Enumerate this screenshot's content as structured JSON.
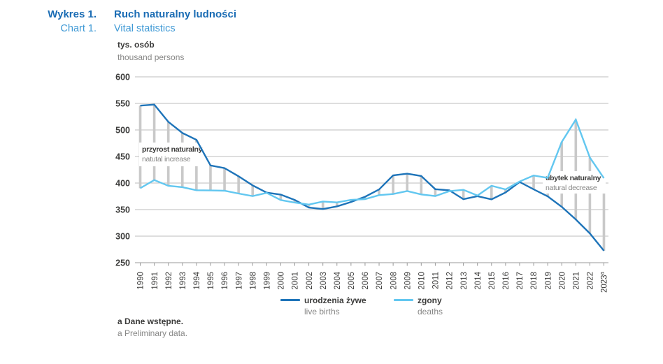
{
  "header": {
    "label_pl": "Wykres 1.",
    "title_pl": "Ruch naturalny ludności",
    "label_en": "Chart 1.",
    "title_en": "Vital statistics"
  },
  "axis": {
    "unit_pl": "tys. osób",
    "unit_en": "thousand persons"
  },
  "legend": [
    {
      "name_pl": "urodzenia żywe",
      "name_en": "live births",
      "color": "#1e74b9"
    },
    {
      "name_pl": "zgony",
      "name_en": "deaths",
      "color": "#62c7f0"
    }
  ],
  "footnote": {
    "pl": "a Dane wstępne.",
    "en": "a Preliminary data."
  },
  "colors": {
    "births_line": "#1e74b9",
    "deaths_line": "#62c7f0",
    "grid": "#bdbdbd",
    "axis": "#9a9a9a",
    "diff_bar": "#c9c9c9",
    "dark_text": "#3c3c3b",
    "gray_text": "#878786",
    "title_pl_blue": "#1a6cb4",
    "title_en_blue": "#3f99d5"
  },
  "chart_data": {
    "type": "line",
    "title": "Ruch naturalny ludności / Vital statistics",
    "xlabel": "",
    "ylabel": "tys. osób / thousand persons",
    "ylim": [
      250,
      600
    ],
    "yticks": [
      600,
      550,
      500,
      450,
      400,
      350,
      300,
      250
    ],
    "grid": true,
    "legend_position": "bottom",
    "categories": [
      "1990",
      "1991",
      "1992",
      "1993",
      "1994",
      "1995",
      "1996",
      "1997",
      "1998",
      "1999",
      "2000",
      "2001",
      "2002",
      "2003",
      "2004",
      "2005",
      "2006",
      "2007",
      "2008",
      "2009",
      "2010",
      "2011",
      "2012",
      "2013",
      "2014",
      "2015",
      "2016",
      "2017",
      "2018",
      "2019",
      "2020",
      "2021",
      "2022",
      "2023"
    ],
    "last_category_superscript": "a",
    "series": [
      {
        "name": "urodzenia żywe / live births",
        "color": "#1e74b9",
        "values": [
          545.8,
          547.7,
          515.2,
          494.3,
          481.3,
          433.1,
          428.2,
          412.7,
          395.6,
          382.0,
          378.3,
          368.2,
          353.8,
          351.1,
          356.1,
          364.4,
          374.2,
          387.9,
          414.5,
          417.6,
          413.3,
          388.4,
          386.3,
          369.6,
          375.2,
          369.3,
          382.3,
          402.0,
          388.2,
          375.0,
          355.3,
          331.5,
          305.1,
          272.5
        ]
      },
      {
        "name": "zgony / deaths",
        "color": "#62c7f0",
        "values": [
          390.3,
          405.7,
          394.7,
          392.3,
          386.4,
          386.1,
          385.5,
          380.2,
          375.4,
          381.4,
          368.0,
          363.2,
          359.5,
          365.2,
          363.5,
          368.3,
          369.7,
          377.2,
          379.4,
          384.9,
          378.5,
          375.5,
          384.8,
          387.3,
          376.5,
          394.9,
          388.0,
          402.9,
          414.2,
          409.7,
          477.4,
          519.5,
          448.2,
          409.2
        ]
      }
    ],
    "annotations": [
      {
        "position": "left",
        "text_pl": "przyrost naturalny",
        "text_en": "natutal increase"
      },
      {
        "position": "right",
        "text_pl": "ubytek naturalny",
        "text_en": "natural decrease"
      }
    ]
  }
}
